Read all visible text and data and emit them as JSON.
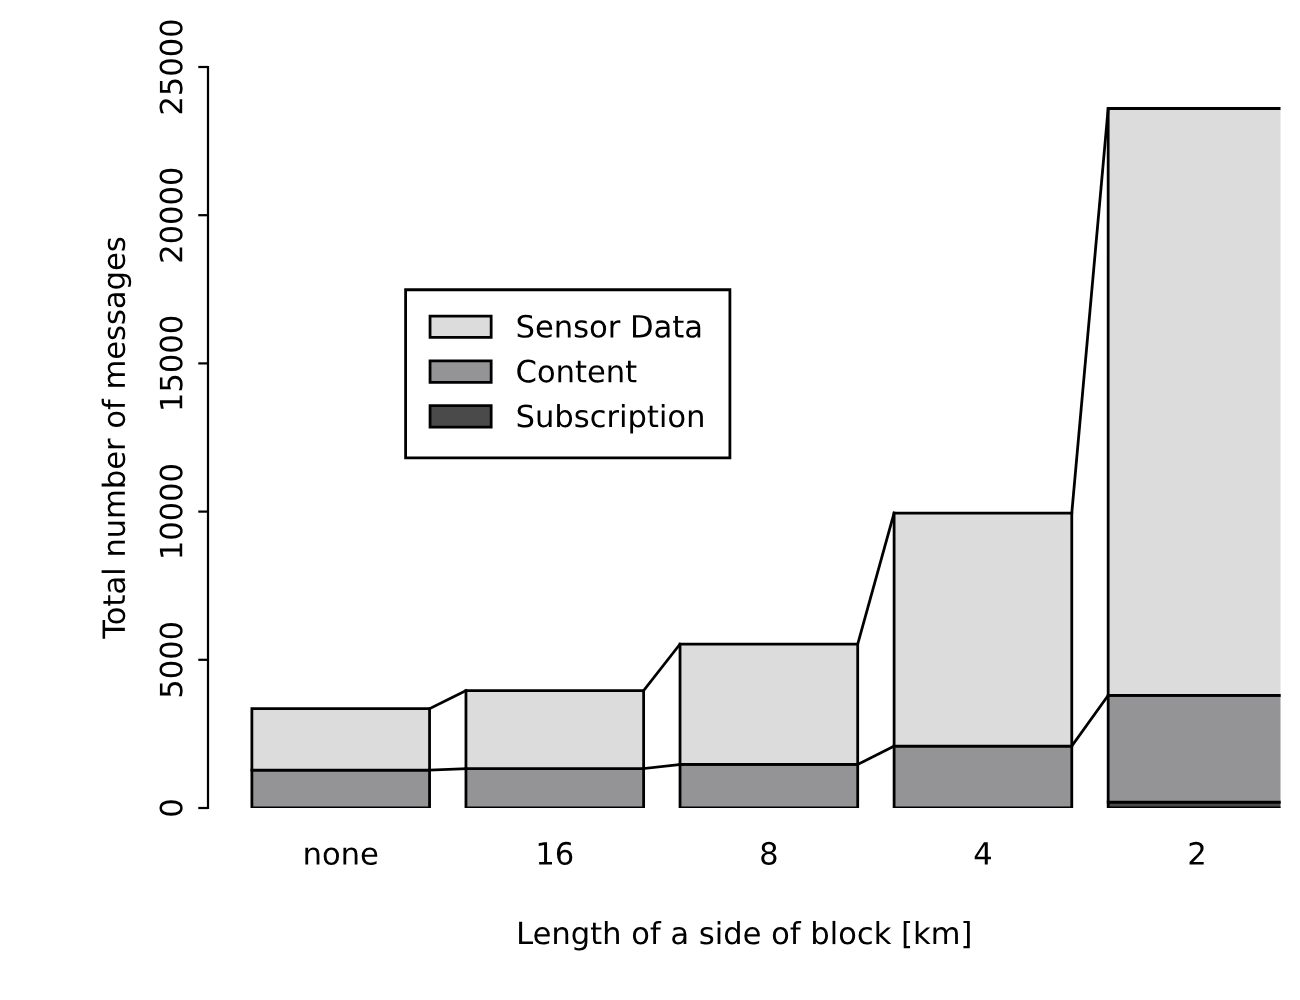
{
  "chart_data": {
    "type": "bar",
    "stacked": true,
    "xlabel": "Length of a side of block [km]",
    "ylabel": "Total number of messages",
    "categories": [
      "none",
      "16",
      "8",
      "4",
      "2"
    ],
    "series": [
      {
        "name": "Subscription",
        "color": "#4a4a4a",
        "values": [
          null,
          null,
          null,
          null,
          200
        ]
      },
      {
        "name": "Content",
        "color": "#949497",
        "values": [
          1280,
          1330,
          1470,
          2090,
          3600
        ]
      },
      {
        "name": "Sensor Data",
        "color": "#dcdcdc",
        "values": [
          2070,
          2630,
          4060,
          7860,
          19800
        ]
      }
    ],
    "ylim": [
      0,
      25000
    ],
    "yticks": [
      0,
      5000,
      10000,
      15000,
      20000,
      25000
    ],
    "grid": false,
    "legend": "top left"
  }
}
